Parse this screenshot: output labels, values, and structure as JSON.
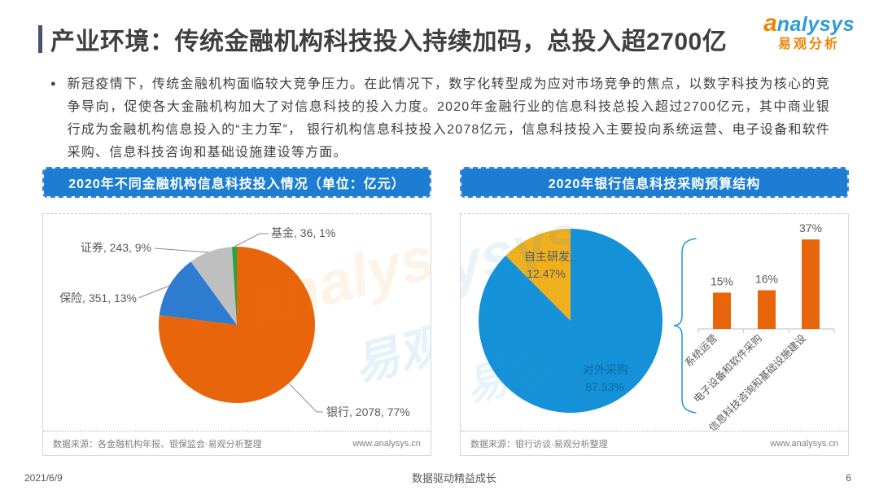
{
  "header": {
    "title": "产业环境：传统金融机构科技投入持续加码，总投入超2700亿",
    "logo": {
      "a": "a",
      "en": "nalysys",
      "cn": "易观分析"
    }
  },
  "summary": "新冠疫情下，传统金融机构面临较大竞争压力。在此情况下，数字化转型成为应对市场竞争的焦点，以数字科技为核心的竞争导向，促使各大金融机构加大了对信息科技的投入力度。2020年金融行业的信息科技总投入超过2700亿元，其中商业银行成为金融机构信息投入的“主力军”， 银行机构信息科技投入2078亿元，信息科技投入主要投向系统运营、电子设备和软件采购、信息科技咨询和基础设施建设等方面。",
  "left_panel": {
    "header": "2020年不同金融机构信息科技投入情况（单位：亿元）",
    "source": "数据来源：各金融机构年报、银保监会·易观分析整理",
    "website": "www.analysys.cn"
  },
  "right_panel": {
    "header": "2020年银行信息科技采购预算结构",
    "source": "数据来源：银行访谈·易观分析整理",
    "website": "www.analysys.cn"
  },
  "watermarks": {
    "left_en": "analysys",
    "left_cn": "易观",
    "right_en": "ysys",
    "right_cn": "易观"
  },
  "footer": {
    "date": "2021/6/9",
    "slogan": "数据驱动精益成长",
    "page_number": "6"
  },
  "chart_data": [
    {
      "type": "pie",
      "title": "2020年不同金融机构信息科技投入情况",
      "unit": "亿元",
      "start_angle_deg": 0,
      "direction": "clockwise",
      "slices": [
        {
          "label": "银行",
          "value": 2078,
          "pct": 77,
          "color": "#E8650C",
          "label_text": "银行, 2078, 77%"
        },
        {
          "label": "保险",
          "value": 351,
          "pct": 13,
          "color": "#2E7CD0",
          "label_text": "保险, 351, 13%"
        },
        {
          "label": "证券",
          "value": 243,
          "pct": 9,
          "color": "#BFBFBF",
          "label_text": "证券, 243, 9%"
        },
        {
          "label": "基金",
          "value": 36,
          "pct": 1,
          "color": "#21A73E",
          "label_text": "基金, 36, 1%"
        }
      ]
    },
    {
      "type": "pie",
      "title": "2020年银行信息科技采购预算结构",
      "start_angle_deg": 0,
      "direction": "clockwise",
      "slices": [
        {
          "label": "对外采购",
          "pct": 87.53,
          "color": "#1591D8",
          "label_text": "对外采购",
          "pct_text": "87.53%"
        },
        {
          "label": "自主研发",
          "pct": 12.47,
          "color": "#F0AF1D",
          "label_text": "自主研发,",
          "pct_text": "12.47%"
        }
      ]
    },
    {
      "type": "bar",
      "categories": [
        "系统运营",
        "电子设备和软件采购",
        "信息科技咨询和基础设施建设"
      ],
      "values": [
        15,
        16,
        37
      ],
      "value_labels": [
        "15%",
        "16%",
        "37%"
      ],
      "bar_color": "#E8650C",
      "ylim": [
        0,
        40
      ],
      "grid": false
    }
  ]
}
